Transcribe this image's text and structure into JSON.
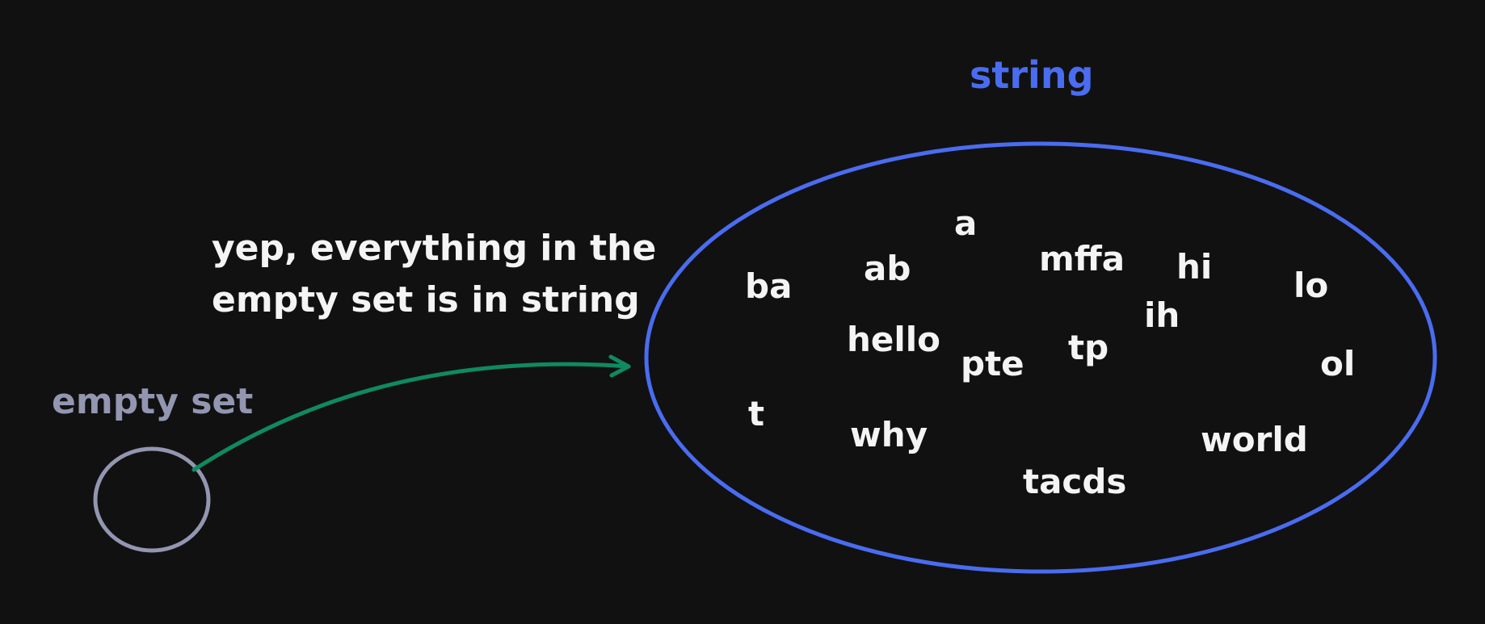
{
  "colors": {
    "background": "#111112",
    "string_set": "#4a6cf0",
    "empty_set": "#9396b0",
    "arrow": "#0f8a5f",
    "text": "#f4f4f4"
  },
  "string_set": {
    "label": "string",
    "members": [
      "a",
      "ab",
      "mffa",
      "hi",
      "ba",
      "lo",
      "ih",
      "hello",
      "pte",
      "tp",
      "ol",
      "t",
      "why",
      "world",
      "tacds"
    ]
  },
  "empty_set": {
    "label": "empty set"
  },
  "caption": {
    "line1": "yep, everything in the",
    "line2": "empty set is in string"
  }
}
